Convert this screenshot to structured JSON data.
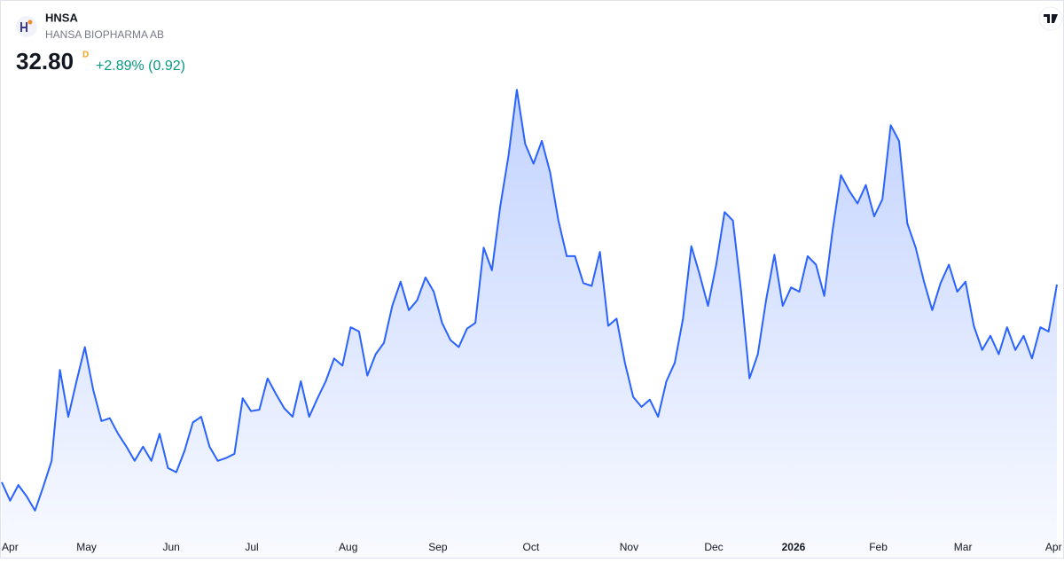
{
  "chart_data": {
    "type": "area",
    "header": {
      "symbol": "HNSA",
      "name": "HANSA BIOPHARMA AB",
      "price": "32.80",
      "interval": "D",
      "change": "+2.89% (0.92)"
    },
    "color": "#2962ff",
    "change_color": "#089981",
    "ylim": [
      15.4,
      47.2
    ],
    "xlim": [
      0,
      127
    ],
    "xticks": [
      {
        "value": 1.0,
        "label": "Apr"
      },
      {
        "value": 10.2,
        "label": "May"
      },
      {
        "value": 20.4,
        "label": "Jun"
      },
      {
        "value": 30.1,
        "label": "Jul"
      },
      {
        "value": 41.7,
        "label": "Aug"
      },
      {
        "value": 52.5,
        "label": "Sep"
      },
      {
        "value": 63.7,
        "label": "Oct"
      },
      {
        "value": 75.5,
        "label": "Nov"
      },
      {
        "value": 85.7,
        "label": "Dec"
      },
      {
        "value": 95.3,
        "label": "2026"
      },
      {
        "value": 105.5,
        "label": "Feb"
      },
      {
        "value": 115.7,
        "label": "Mar"
      },
      {
        "value": 126.6,
        "label": "Apr"
      }
    ],
    "values": [
      18.9,
      17.6,
      18.7,
      17.9,
      16.9,
      18.6,
      20.4,
      26.8,
      23.5,
      26.0,
      28.4,
      25.4,
      23.2,
      23.4,
      22.3,
      21.4,
      20.4,
      21.4,
      20.4,
      22.3,
      19.9,
      19.6,
      21.1,
      23.1,
      23.5,
      21.4,
      20.4,
      20.6,
      20.9,
      24.8,
      23.9,
      24.0,
      26.2,
      25.1,
      24.1,
      23.5,
      26.0,
      23.5,
      24.8,
      26.0,
      27.6,
      27.1,
      29.8,
      29.5,
      26.4,
      27.9,
      28.7,
      31.3,
      33.0,
      31.0,
      31.7,
      33.3,
      32.3,
      30.1,
      28.9,
      28.4,
      29.7,
      30.1,
      35.4,
      33.8,
      38.3,
      41.9,
      46.5,
      42.7,
      41.3,
      42.9,
      40.7,
      37.3,
      34.8,
      34.8,
      32.9,
      32.7,
      35.1,
      29.9,
      30.4,
      27.3,
      24.9,
      24.2,
      24.7,
      23.5,
      26.0,
      27.3,
      30.4,
      35.5,
      33.5,
      31.3,
      34.2,
      37.9,
      37.3,
      32.3,
      26.2,
      27.9,
      31.7,
      34.9,
      31.3,
      32.6,
      32.3,
      34.8,
      34.2,
      32.0,
      36.6,
      40.5,
      39.4,
      38.5,
      39.8,
      37.6,
      38.8,
      44.0,
      42.9,
      37.1,
      35.4,
      33.0,
      31.0,
      32.9,
      34.2,
      32.3,
      33.0,
      29.9,
      28.2,
      29.2,
      27.9,
      29.8,
      28.2,
      29.2,
      27.6,
      29.8,
      29.5,
      32.8
    ]
  }
}
